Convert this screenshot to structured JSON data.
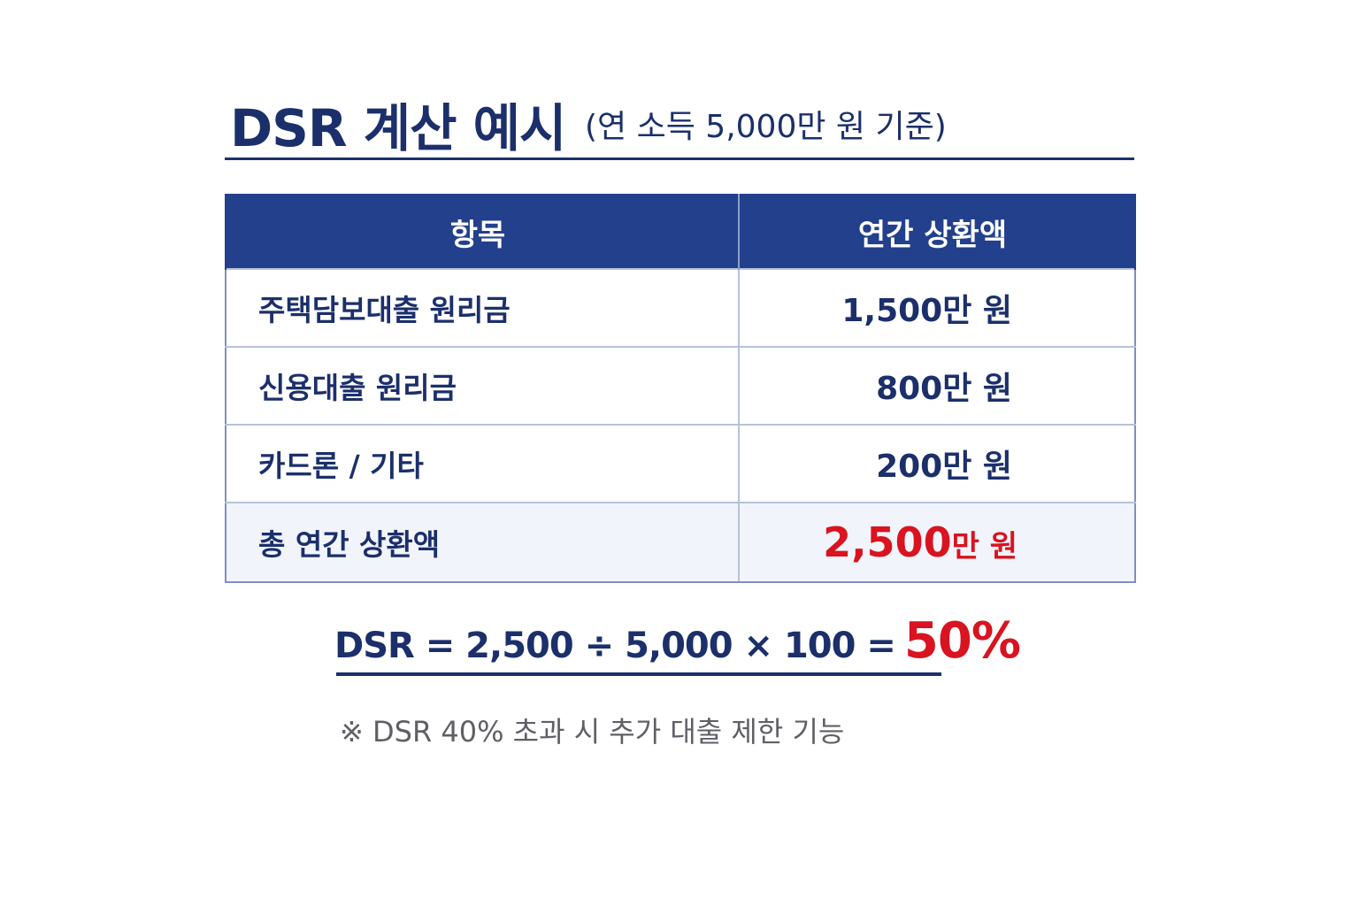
{
  "title": {
    "main": "DSR 계산 예시",
    "sub": "(연 소득 5,000만 원 기준)"
  },
  "table": {
    "headers": [
      "항목",
      "연간 상환액"
    ],
    "rows": [
      {
        "item": "주택담보대출 원리금",
        "amount": "1,500만 원"
      },
      {
        "item": "신용대출 원리금",
        "amount": "800만 원"
      },
      {
        "item": "카드론 / 기타",
        "amount": "200만 원"
      }
    ],
    "total": {
      "item": "총 연간 상환액",
      "amount_number": "2,500",
      "amount_unit": "만 원"
    }
  },
  "formula": {
    "expression": "DSR = 2,500 ÷ 5,000 × 100 =",
    "result": "50%"
  },
  "note": "※ DSR 40% 초과 시 추가 대출 제한 기능",
  "colors": {
    "navy": "#1b2f6b",
    "header_bg": "#22408b",
    "accent_red": "#d9131f",
    "note_gray": "#5f6066"
  }
}
